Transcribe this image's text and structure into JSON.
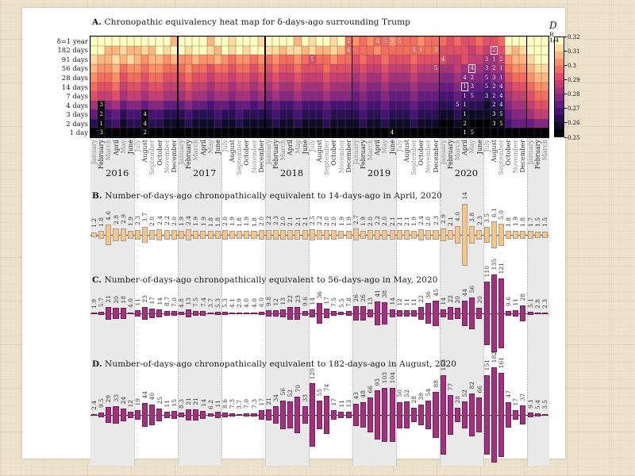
{
  "app": {
    "background_color": "#ece2cb",
    "figure_background": "#ffffff"
  },
  "chart_data": [
    {
      "type": "heatmap",
      "title_prefix": "A.",
      "title": "Chronopathic equivalency heat map for δ-days-ago surrounding Trump",
      "row_labels": [
        "δ=1 year",
        "182 days",
        "91 days",
        "56 days",
        "28 days",
        "14 days",
        "7 days",
        "4 days",
        "3 days",
        "2 days",
        "1 day"
      ],
      "month_names": [
        "January",
        "February",
        "March",
        "April",
        "May",
        "June",
        "July",
        "August",
        "September",
        "October",
        "November",
        "December"
      ],
      "year_labels": [
        "2016",
        "2017",
        "2018",
        "2019",
        "2020"
      ],
      "n_cols": 63,
      "first_col": "January 2016",
      "last_col": "March 2021",
      "value_min": 0.25,
      "value_max": 0.32,
      "n_levels": 14,
      "palette": [
        "#000004",
        "#140e36",
        "#3b0f70",
        "#641a80",
        "#8c2981",
        "#b73779",
        "#de4968",
        "#f7705c",
        "#fe9f6d",
        "#fecf92",
        "#fcfdbf"
      ],
      "grid_levels_hex": [
        [
          "ddddddddddd",
          "b",
          "dddd",
          "b",
          "ddcdddc",
          "ddddbdcddcd",
          "9",
          "a9a99a999a99",
          "989889889",
          "dddddd"
        ],
        [
          "dd",
          "bbcbbcb",
          "dcddcdd",
          "cbdcdcdd",
          "ccbccbcbbcb9",
          "999a99999999",
          "888878778",
          "cbcddd"
        ],
        [
          "cbbcbc",
          "babbab",
          "aabaab",
          "a9aa9a",
          "9a99a9",
          "8",
          "99a99",
          "898898889888",
          "877877667",
          "abbcdd"
        ],
        [
          "baab9a",
          "a9aa99",
          "9a9989",
          "989989",
          "898898",
          "889888",
          "787787778777",
          "667666566",
          "9aabcc"
        ],
        [
          "a99a89",
          "989988",
          "898878",
          "878878",
          "787787",
          "778777",
          "676676667666",
          "556555455",
          "899abb"
        ],
        [
          "988978",
          "878877",
          "787767",
          "767767",
          "676676",
          "667666",
          "565565556555",
          "445444344",
          "7889aa"
        ],
        [
          "877867",
          "767766",
          "676656",
          "656656",
          "565565",
          "556555",
          "454454445444",
          "334333233",
          "677899"
        ],
        [
          "605645",
          "545544",
          "454434",
          "434434",
          "343343",
          "334333",
          "343343334333",
          "223222122",
          "566788"
        ],
        [
          "403423",
          "303322",
          "232223",
          "223222",
          "232232",
          "223222",
          "232232223222",
          "112111111",
          "455677"
        ],
        [
          "202312",
          "202211",
          "121112",
          "112111",
          "121121",
          "112111",
          "121121112111",
          "001000000",
          "344455"
        ],
        [
          "000000000000000000000000000000000000000000000000000000000000000"
        ]
      ],
      "colorbar": {
        "label_base": "D",
        "label_sup": "R",
        "label_sub": "1/4",
        "ticks": [
          "0.32",
          "0.31",
          "0.3",
          "0.29",
          "0.28",
          "0.27",
          "0.26",
          "0.25"
        ]
      },
      "annotations": [
        {
          "row": 0,
          "col": 35,
          "label": "2"
        },
        {
          "row": 0,
          "col": 39,
          "label": "4"
        },
        {
          "row": 0,
          "col": 40,
          "label": "3"
        },
        {
          "row": 0,
          "col": 41,
          "label": "1"
        },
        {
          "row": 0,
          "col": 42,
          "label": "5"
        },
        {
          "row": 1,
          "col": 35,
          "label": "4"
        },
        {
          "row": 1,
          "col": 44,
          "label": "5"
        },
        {
          "row": 1,
          "col": 45,
          "label": "1"
        },
        {
          "row": 1,
          "col": 47,
          "label": "3"
        },
        {
          "row": 1,
          "col": 55,
          "label": "2",
          "boxed": true
        },
        {
          "row": 2,
          "col": 30,
          "label": "5"
        },
        {
          "row": 2,
          "col": 48,
          "label": "4"
        },
        {
          "row": 2,
          "col": 54,
          "label": "3"
        },
        {
          "row": 2,
          "col": 55,
          "label": "1"
        },
        {
          "row": 2,
          "col": 56,
          "label": "2"
        },
        {
          "row": 3,
          "col": 47,
          "label": "5"
        },
        {
          "row": 3,
          "col": 52,
          "label": "4",
          "boxed": true
        },
        {
          "row": 3,
          "col": 54,
          "label": "3"
        },
        {
          "row": 3,
          "col": 55,
          "label": "2"
        },
        {
          "row": 3,
          "col": 56,
          "label": "1"
        },
        {
          "row": 4,
          "col": 51,
          "label": "4"
        },
        {
          "row": 4,
          "col": 52,
          "label": "2"
        },
        {
          "row": 4,
          "col": 54,
          "label": "5"
        },
        {
          "row": 4,
          "col": 55,
          "label": "3"
        },
        {
          "row": 4,
          "col": 56,
          "label": "1"
        },
        {
          "row": 5,
          "col": 51,
          "label": "1",
          "boxed": true
        },
        {
          "row": 5,
          "col": 52,
          "label": "3"
        },
        {
          "row": 5,
          "col": 54,
          "label": "5"
        },
        {
          "row": 5,
          "col": 55,
          "label": "2"
        },
        {
          "row": 5,
          "col": 56,
          "label": "4"
        },
        {
          "row": 6,
          "col": 51,
          "label": "1"
        },
        {
          "row": 6,
          "col": 52,
          "label": "5"
        },
        {
          "row": 6,
          "col": 54,
          "label": "3"
        },
        {
          "row": 6,
          "col": 55,
          "label": "2"
        },
        {
          "row": 6,
          "col": 56,
          "label": "4"
        },
        {
          "row": 7,
          "col": 1,
          "label": "3"
        },
        {
          "row": 7,
          "col": 50,
          "label": "5"
        },
        {
          "row": 7,
          "col": 51,
          "label": "1"
        },
        {
          "row": 7,
          "col": 55,
          "label": "2"
        },
        {
          "row": 7,
          "col": 56,
          "label": "4"
        },
        {
          "row": 8,
          "col": 1,
          "label": "2"
        },
        {
          "row": 8,
          "col": 7,
          "label": "4"
        },
        {
          "row": 8,
          "col": 51,
          "label": "1"
        },
        {
          "row": 8,
          "col": 55,
          "label": "3"
        },
        {
          "row": 8,
          "col": 56,
          "label": "5"
        },
        {
          "row": 9,
          "col": 1,
          "label": "1"
        },
        {
          "row": 9,
          "col": 7,
          "label": "4"
        },
        {
          "row": 9,
          "col": 51,
          "label": "2"
        },
        {
          "row": 9,
          "col": 55,
          "label": "3"
        },
        {
          "row": 9,
          "col": 56,
          "label": "5"
        },
        {
          "row": 10,
          "col": 1,
          "label": "3"
        },
        {
          "row": 10,
          "col": 7,
          "label": "2"
        },
        {
          "row": 10,
          "col": 41,
          "label": "4"
        },
        {
          "row": 10,
          "col": 51,
          "label": "1"
        },
        {
          "row": 10,
          "col": 52,
          "label": "5"
        }
      ]
    },
    {
      "type": "bar",
      "panel": "B",
      "title_prefix": "B.",
      "title": "Number-of-days-ago chronopathically equivalent to 14-days-ago in April, 2020",
      "bar_color": "#f9c586",
      "bar_edge": "#8d8d8d",
      "values": [
        1.2,
        1.8,
        4.6,
        2.8,
        2.9,
        1.9,
        2.3,
        3.7,
        2.0,
        2.4,
        2.2,
        2.0,
        1.9,
        2.4,
        1.9,
        1.9,
        1.8,
        1.8,
        2.0,
        1.9,
        1.8,
        1.9,
        1.8,
        2.0,
        2.2,
        2.3,
        2.0,
        2.1,
        2.1,
        2.1,
        2.5,
        2.2,
        2.0,
        2.0,
        1.9,
        1.9,
        2.7,
        1.9,
        2.0,
        2.2,
        2.0,
        2.1,
        2.1,
        2.1,
        1.9,
        2.4,
        2.0,
        2.3,
        2.9,
        2.1,
        4.0,
        14,
        3.8,
        2.3,
        3.5,
        6.1,
        5.0,
        1.8,
        1.9,
        1.8,
        1.7,
        1.5,
        1.5
      ]
    },
    {
      "type": "bar",
      "panel": "C",
      "title_prefix": "C.",
      "title": "Number-of-days-ago chronopathically equivalent to 56-days-ago in May, 2020",
      "bar_color": "#a3317d",
      "bar_edge": "#5e1b49",
      "values": [
        1.9,
        5.7,
        21,
        20,
        18,
        4.0,
        11,
        23,
        17,
        14,
        8.7,
        7.0,
        4.8,
        13,
        7.5,
        7.4,
        3.7,
        5.3,
        5.3,
        4.1,
        2.9,
        4.0,
        4.0,
        6.0,
        9.8,
        12,
        13,
        22,
        23,
        9.6,
        14,
        36,
        17,
        7.5,
        5.5,
        7.8,
        26,
        26,
        13,
        41,
        38,
        14,
        12,
        11,
        11,
        22,
        36,
        45,
        14,
        22,
        20,
        44,
        56,
        20,
        110,
        135,
        121,
        9.6,
        11,
        28,
        5.1,
        2.8,
        2.3
      ]
    },
    {
      "type": "bar",
      "panel": "D",
      "title_prefix": "D.",
      "title": "Number-of-days-ago chronopathically equivalent to 182-days-ago in August, 2020",
      "bar_color": "#a3317d",
      "bar_edge": "#5e1b49",
      "values": [
        2.4,
        9.5,
        29,
        33,
        24,
        12,
        19,
        44,
        40,
        25,
        11,
        15,
        8.3,
        21,
        21,
        14,
        6.2,
        11,
        8.6,
        7.3,
        3.7,
        7.0,
        7.3,
        17,
        21,
        34,
        56,
        52,
        70,
        33,
        120,
        55,
        74,
        17,
        11,
        13,
        43,
        48,
        66,
        93,
        103,
        104,
        50,
        52,
        28,
        39,
        54,
        88,
        153,
        77,
        28,
        52,
        82,
        66,
        151,
        182,
        161,
        47,
        17,
        37,
        9.1,
        5.4,
        3.5
      ]
    }
  ]
}
